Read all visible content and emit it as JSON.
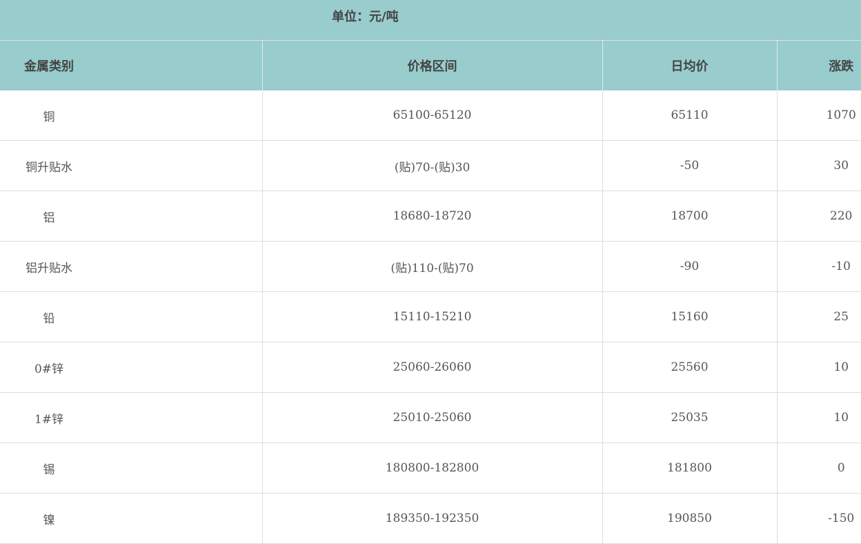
{
  "unit_label": "单位：元/吨",
  "header_bg": "#99cccc",
  "columns": [
    "金属类别",
    "价格区间",
    "日均价",
    "涨跌"
  ],
  "rows": [
    {
      "metal": "铜",
      "range": "65100-65120",
      "avg": "65110",
      "change": "1070"
    },
    {
      "metal": "铜升贴水",
      "range": "(贴)70-(贴)30",
      "avg": "-50",
      "change": "30"
    },
    {
      "metal": "铝",
      "range": "18680-18720",
      "avg": "18700",
      "change": "220"
    },
    {
      "metal": "铝升贴水",
      "range": "(贴)110-(贴)70",
      "avg": "-90",
      "change": "-10"
    },
    {
      "metal": "铅",
      "range": "15110-15210",
      "avg": "15160",
      "change": "25"
    },
    {
      "metal": "0#锌",
      "range": "25060-26060",
      "avg": "25560",
      "change": "10"
    },
    {
      "metal": "1#锌",
      "range": "25010-25060",
      "avg": "25035",
      "change": "10"
    },
    {
      "metal": "锡",
      "range": "180800-182800",
      "avg": "181800",
      "change": "0"
    },
    {
      "metal": "镍",
      "range": "189350-192350",
      "avg": "190850",
      "change": "-150"
    }
  ]
}
